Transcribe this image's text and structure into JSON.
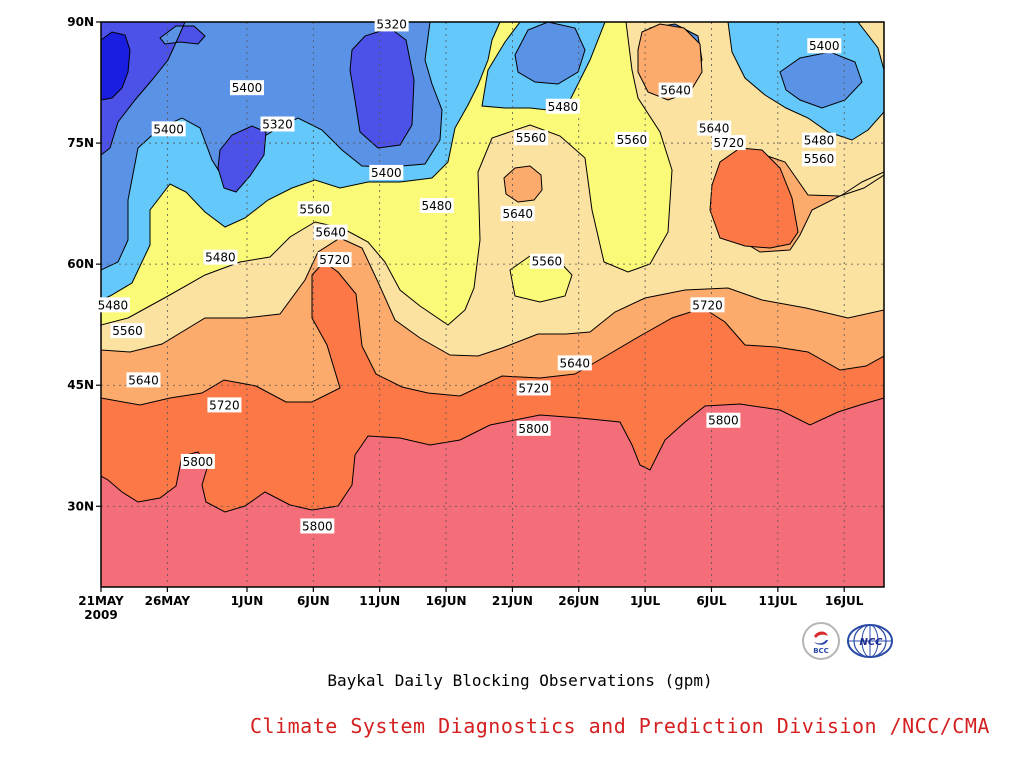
{
  "chart_data": {
    "type": "heatmap",
    "subtype": "filled-contour-hovmoller",
    "title": "Baykal Daily Blocking Observations (gpm)",
    "credit": "Climate System Diagnostics and Prediction Division /NCC/CMA",
    "x_tick_labels": [
      "21MAY",
      "26MAY",
      "1JUN",
      "6JUN",
      "11JUN",
      "16JUN",
      "21JUN",
      "26JUN",
      "1JUL",
      "6JUL",
      "11JUL",
      "16JUL"
    ],
    "x_tick_days": [
      0,
      5,
      11,
      16,
      21,
      26,
      31,
      36,
      41,
      46,
      51,
      56
    ],
    "x_start_year_label": "2009",
    "xlim_days": [
      0,
      59
    ],
    "y_tick_labels": [
      "30N",
      "45N",
      "60N",
      "75N",
      "90N"
    ],
    "y_tick_values": [
      30,
      45,
      60,
      75,
      90
    ],
    "ylim": [
      20,
      90
    ],
    "grid": "dotted",
    "contour_levels": [
      5320,
      5400,
      5480,
      5560,
      5640,
      5720,
      5800
    ],
    "fill_colors": {
      "below_5320": "#1a1ee0",
      "5320_5400": "#4c52e8",
      "5400_5480": "#5a92e6",
      "5480_5560": "#64c8fa",
      "5560_5640": "#fafa78",
      "5640_5720": "#fce2a0",
      "5720_5800": "#fcab6c",
      "5800_5880": "#fc7846",
      "above_5880": "#f46e7a"
    },
    "contour_labels": [
      {
        "value": "5320",
        "day": 21.9,
        "lat": 89.7
      },
      {
        "value": "5400",
        "day": 54.5,
        "lat": 87.0
      },
      {
        "value": "5400",
        "day": 11.0,
        "lat": 81.8
      },
      {
        "value": "5320",
        "day": 13.3,
        "lat": 77.3
      },
      {
        "value": "5400",
        "day": 5.1,
        "lat": 76.7
      },
      {
        "value": "5480",
        "day": 34.8,
        "lat": 79.5
      },
      {
        "value": "5640",
        "day": 43.3,
        "lat": 81.5
      },
      {
        "value": "5640",
        "day": 46.2,
        "lat": 76.8
      },
      {
        "value": "5480",
        "day": 54.1,
        "lat": 75.3
      },
      {
        "value": "5560",
        "day": 32.4,
        "lat": 75.6
      },
      {
        "value": "5560",
        "day": 40.0,
        "lat": 75.4
      },
      {
        "value": "5720",
        "day": 47.3,
        "lat": 75.0
      },
      {
        "value": "5560",
        "day": 54.1,
        "lat": 73.0
      },
      {
        "value": "5400",
        "day": 21.5,
        "lat": 71.3
      },
      {
        "value": "5480",
        "day": 25.3,
        "lat": 67.2
      },
      {
        "value": "5560",
        "day": 16.1,
        "lat": 66.8
      },
      {
        "value": "5640",
        "day": 31.4,
        "lat": 66.2
      },
      {
        "value": "5640",
        "day": 17.3,
        "lat": 63.9
      },
      {
        "value": "5480",
        "day": 9.0,
        "lat": 60.8
      },
      {
        "value": "5720",
        "day": 17.6,
        "lat": 60.5
      },
      {
        "value": "5560",
        "day": 33.6,
        "lat": 60.3
      },
      {
        "value": "5480",
        "day": 0.9,
        "lat": 54.9
      },
      {
        "value": "5720",
        "day": 45.7,
        "lat": 54.9
      },
      {
        "value": "5560",
        "day": 2.0,
        "lat": 51.7
      },
      {
        "value": "5640",
        "day": 35.7,
        "lat": 47.7
      },
      {
        "value": "5640",
        "day": 3.2,
        "lat": 45.6
      },
      {
        "value": "5720",
        "day": 32.6,
        "lat": 44.6
      },
      {
        "value": "5720",
        "day": 9.3,
        "lat": 42.5
      },
      {
        "value": "5800",
        "day": 46.9,
        "lat": 40.6
      },
      {
        "value": "5800",
        "day": 32.6,
        "lat": 39.6
      },
      {
        "value": "5800",
        "day": 7.3,
        "lat": 35.5
      },
      {
        "value": "5800",
        "day": 16.3,
        "lat": 27.5
      }
    ]
  },
  "logos": [
    {
      "name": "bcc-logo",
      "text": "BCC"
    },
    {
      "name": "ncc-logo",
      "text": "NCC"
    }
  ]
}
